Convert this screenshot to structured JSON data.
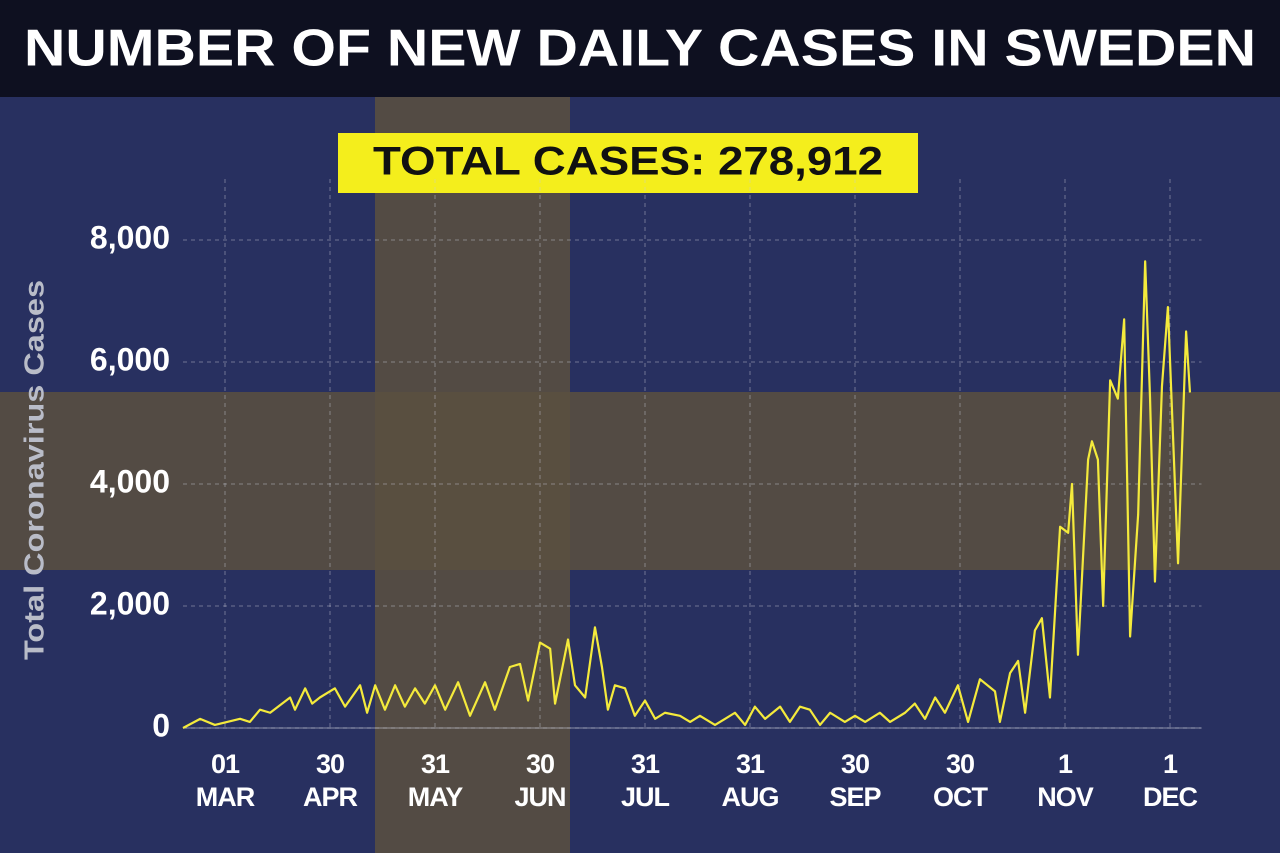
{
  "chart_data": {
    "type": "line",
    "title": "NUMBER OF NEW DAILY CASES IN SWEDEN",
    "annotation": "TOTAL CASES: 278,912",
    "y_label": "Total Coronavirus Cases",
    "color": "#f4ea3c",
    "grid": true,
    "xlim": [
      -12,
      279
    ],
    "ylim": [
      0,
      9000
    ],
    "yticks": [
      0,
      {
        "value": 2000,
        "label": "2,000"
      },
      {
        "value": 4000,
        "label": "4,000"
      },
      {
        "value": 6000,
        "label": "6,000"
      },
      {
        "value": 8000,
        "label": "8,000"
      }
    ],
    "xticks": [
      {
        "value": 0,
        "label": "01\nMAR"
      },
      {
        "value": 30,
        "label": "30\nAPR"
      },
      {
        "value": 60,
        "label": "31\nMAY"
      },
      {
        "value": 90,
        "label": "30\nJUN"
      },
      {
        "value": 120,
        "label": "31\nJUL"
      },
      {
        "value": 150,
        "label": "31\nAUG"
      },
      {
        "value": 180,
        "label": "30\nSEP"
      },
      {
        "value": 210,
        "label": "30\nOCT"
      },
      {
        "value": 240,
        "label": "1\nNOV"
      },
      {
        "value": 270,
        "label": "1\nDEC"
      }
    ],
    "x": [
      -12,
      -7.1,
      -2.9,
      4.3,
      7.1,
      10,
      12.9,
      18.6,
      20,
      22.9,
      24.9,
      27.1,
      31.4,
      34.3,
      38.6,
      40.6,
      42.9,
      45.7,
      48.6,
      51.4,
      54.3,
      57.1,
      60,
      62.9,
      66.6,
      70,
      74.3,
      77.1,
      81.4,
      84.3,
      86.6,
      90,
      92.9,
      94.3,
      98,
      100,
      102.9,
      105.7,
      107.7,
      109.4,
      111.4,
      114.3,
      117.1,
      120,
      122.9,
      125.7,
      130,
      132.9,
      135.7,
      140,
      142.9,
      145.7,
      148.6,
      151.4,
      154.3,
      158.6,
      161.4,
      164.3,
      167.1,
      170,
      172.9,
      177.1,
      180,
      182.9,
      187.1,
      190,
      194.3,
      197.1,
      200,
      202.9,
      205.7,
      209.4,
      212.3,
      215.7,
      220,
      221.4,
      224.3,
      226.6,
      228.6,
      231.4,
      233.4,
      235.7,
      238.6,
      240.9,
      242,
      243.7,
      246.6,
      247.7,
      249.4,
      250.9,
      252.9,
      255.1,
      256.9,
      258.6,
      260.9,
      262.9,
      264.3,
      265.7,
      267.7,
      269.4,
      272.3,
      274.6,
      275.7
    ],
    "values": [
      0,
      150,
      50,
      150,
      100,
      300,
      250,
      500,
      300,
      650,
      400,
      500,
      650,
      350,
      700,
      250,
      700,
      300,
      700,
      350,
      650,
      400,
      700,
      300,
      750,
      200,
      750,
      300,
      1000,
      1050,
      450,
      1400,
      1300,
      400,
      1450,
      700,
      500,
      1650,
      1000,
      300,
      700,
      650,
      200,
      450,
      150,
      250,
      200,
      100,
      200,
      50,
      150,
      250,
      50,
      350,
      150,
      350,
      100,
      350,
      300,
      50,
      250,
      100,
      200,
      100,
      250,
      100,
      250,
      400,
      150,
      500,
      250,
      700,
      100,
      800,
      600,
      100,
      900,
      1100,
      250,
      1600,
      1800,
      500,
      3300,
      3200,
      4000,
      1200,
      4400,
      4700,
      4400,
      2000,
      5700,
      5400,
      6700,
      1500,
      3500,
      7650,
      5400,
      2400,
      5600,
      6900,
      2700,
      6500,
      5500
    ]
  }
}
